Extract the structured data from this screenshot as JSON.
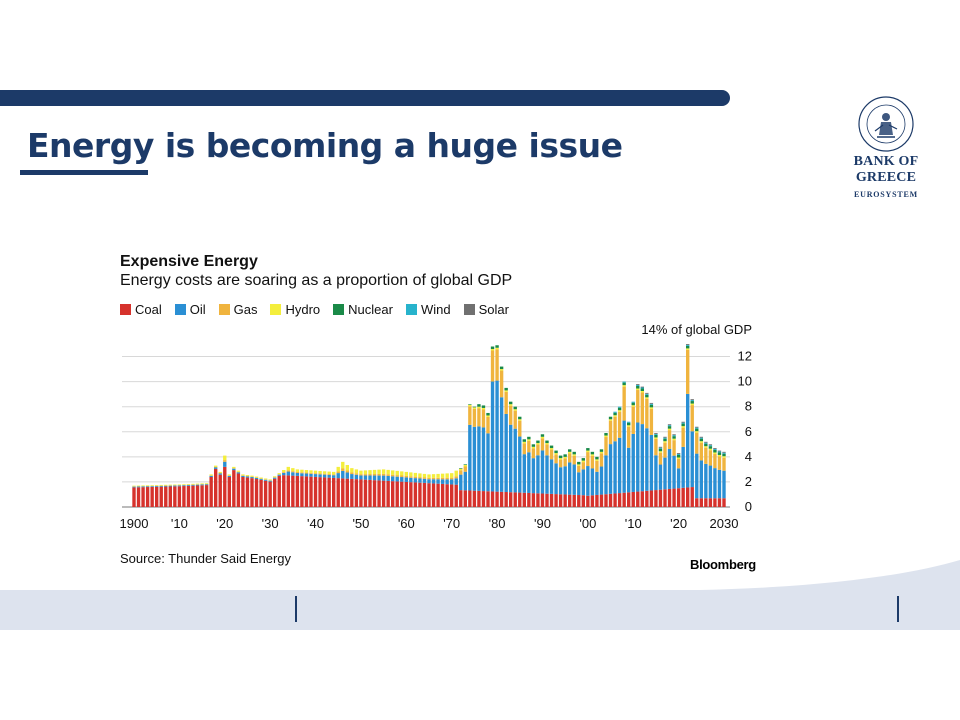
{
  "slide": {
    "title": "Energy is becoming a huge issue",
    "logo_name": "BANK OF GREECE",
    "logo_sub": "EUROSYSTEM"
  },
  "colors": {
    "brand_navy": "#1c3a68",
    "coal": "#d6322c",
    "oil": "#2a8fd4",
    "gas": "#f0b43e",
    "hydro": "#f4ee3c",
    "nuclear": "#1a8a48",
    "wind": "#27b3cc",
    "solar": "#707070"
  },
  "chart_data": {
    "type": "bar",
    "stacked": true,
    "title": "Expensive Energy",
    "subtitle": "Energy costs are soaring as a proportion of global GDP",
    "ylabel": "14% of global GDP",
    "ylim": [
      0,
      14
    ],
    "yticks": [
      "0",
      "2",
      "4",
      "6",
      "8",
      "10",
      "12"
    ],
    "xticks": [
      "1900",
      "'10",
      "'20",
      "'30",
      "'40",
      "'50",
      "'60",
      "'70",
      "'80",
      "'90",
      "'00",
      "'10",
      "'20",
      "2030"
    ],
    "xlim": [
      1900,
      2030
    ],
    "grid": "horizontal",
    "legend_position": "top-left",
    "source": "Source: Thunder Said Energy",
    "brand": "Bloomberg",
    "series": [
      {
        "name": "Coal",
        "color_key": "coal"
      },
      {
        "name": "Oil",
        "color_key": "oil"
      },
      {
        "name": "Gas",
        "color_key": "gas"
      },
      {
        "name": "Hydro",
        "color_key": "hydro"
      },
      {
        "name": "Nuclear",
        "color_key": "nuclear"
      },
      {
        "name": "Wind",
        "color_key": "wind"
      },
      {
        "name": "Solar",
        "color_key": "solar"
      }
    ],
    "key_totals": [
      [
        1900,
        1.7
      ],
      [
        1910,
        1.8
      ],
      [
        1916,
        1.9
      ],
      [
        1918,
        3.3
      ],
      [
        1919,
        2.8
      ],
      [
        1920,
        4.1
      ],
      [
        1921,
        2.6
      ],
      [
        1922,
        3.2
      ],
      [
        1924,
        2.6
      ],
      [
        1926,
        2.5
      ],
      [
        1930,
        2.2
      ],
      [
        1934,
        3.2
      ],
      [
        1936,
        3.0
      ],
      [
        1940,
        2.9
      ],
      [
        1944,
        2.8
      ],
      [
        1946,
        3.6
      ],
      [
        1948,
        3.1
      ],
      [
        1950,
        2.9
      ],
      [
        1955,
        3.0
      ],
      [
        1960,
        2.8
      ],
      [
        1965,
        2.6
      ],
      [
        1970,
        2.7
      ],
      [
        1972,
        3.1
      ],
      [
        1973,
        3.4
      ],
      [
        1974,
        8.2
      ],
      [
        1975,
        8.0
      ],
      [
        1976,
        8.2
      ],
      [
        1977,
        8.1
      ],
      [
        1978,
        7.5
      ],
      [
        1979,
        12.8
      ],
      [
        1980,
        12.9
      ],
      [
        1981,
        11.2
      ],
      [
        1982,
        9.5
      ],
      [
        1983,
        8.4
      ],
      [
        1984,
        8.0
      ],
      [
        1985,
        7.2
      ],
      [
        1986,
        5.4
      ],
      [
        1987,
        5.6
      ],
      [
        1988,
        5.0
      ],
      [
        1989,
        5.3
      ],
      [
        1990,
        5.8
      ],
      [
        1991,
        5.3
      ],
      [
        1992,
        4.9
      ],
      [
        1993,
        4.5
      ],
      [
        1994,
        4.1
      ],
      [
        1995,
        4.2
      ],
      [
        1996,
        4.6
      ],
      [
        1997,
        4.4
      ],
      [
        1998,
        3.6
      ],
      [
        1999,
        3.9
      ],
      [
        2000,
        4.7
      ],
      [
        2001,
        4.4
      ],
      [
        2002,
        4.0
      ],
      [
        2003,
        4.6
      ],
      [
        2004,
        5.9
      ],
      [
        2005,
        7.2
      ],
      [
        2006,
        7.6
      ],
      [
        2007,
        8.0
      ],
      [
        2008,
        10.0
      ],
      [
        2009,
        6.8
      ],
      [
        2010,
        8.4
      ],
      [
        2011,
        9.8
      ],
      [
        2012,
        9.6
      ],
      [
        2013,
        9.1
      ],
      [
        2014,
        8.3
      ],
      [
        2015,
        5.9
      ],
      [
        2016,
        4.8
      ],
      [
        2017,
        5.6
      ],
      [
        2018,
        6.6
      ],
      [
        2019,
        5.8
      ],
      [
        2020,
        4.3
      ],
      [
        2021,
        6.8
      ],
      [
        2022,
        13.0
      ],
      [
        2023,
        8.6
      ],
      [
        2024,
        6.4
      ],
      [
        2025,
        5.6
      ],
      [
        2026,
        5.2
      ],
      [
        2027,
        5.0
      ],
      [
        2028,
        4.7
      ],
      [
        2029,
        4.5
      ],
      [
        2030,
        4.4
      ]
    ]
  }
}
